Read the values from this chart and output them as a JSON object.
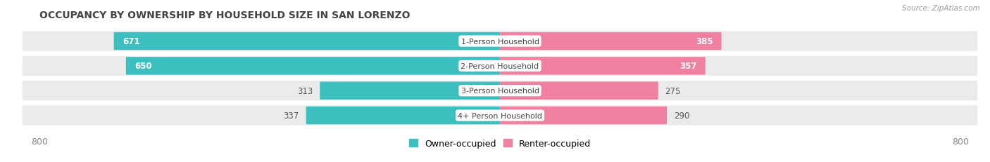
{
  "title": "OCCUPANCY BY OWNERSHIP BY HOUSEHOLD SIZE IN SAN LORENZO",
  "source": "Source: ZipAtlas.com",
  "categories": [
    "1-Person Household",
    "2-Person Household",
    "3-Person Household",
    "4+ Person Household"
  ],
  "owner_values": [
    671,
    650,
    313,
    337
  ],
  "renter_values": [
    385,
    357,
    275,
    290
  ],
  "x_max": 800,
  "owner_color": "#3DBFBF",
  "renter_color": "#F080A0",
  "bar_bg_color": "#EBEBEB",
  "title_fontsize": 10,
  "source_fontsize": 7.5,
  "tick_fontsize": 9,
  "bar_label_fontsize": 8.5,
  "category_fontsize": 8,
  "legend_fontsize": 9
}
